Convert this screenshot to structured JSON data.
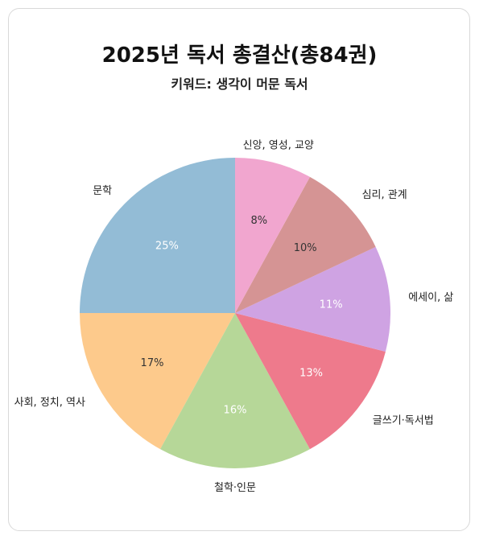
{
  "chart_data": {
    "type": "pie",
    "title": "2025년 독서 총결산(총84권)",
    "subtitle": "키워드: 생각이 머문 독서",
    "slices": [
      {
        "label": "문학",
        "value": 25,
        "value_label": "25%",
        "color": "#93bcd6",
        "pct_color": "#ffffff"
      },
      {
        "label": "사회, 정치, 역사",
        "value": 17,
        "value_label": "17%",
        "color": "#fdca8c",
        "pct_color": "#333333"
      },
      {
        "label": "철학·인문",
        "value": 16,
        "value_label": "16%",
        "color": "#b6d798",
        "pct_color": "#ffffff"
      },
      {
        "label": "글쓰기·독서법",
        "value": 13,
        "value_label": "13%",
        "color": "#ee7a8c",
        "pct_color": "#ffffff"
      },
      {
        "label": "에세이, 삶",
        "value": 11,
        "value_label": "11%",
        "color": "#cfa3e3",
        "pct_color": "#ffffff"
      },
      {
        "label": "심리, 관계",
        "value": 10,
        "value_label": "10%",
        "color": "#d59494",
        "pct_color": "#333333"
      },
      {
        "label": "신앙, 영성, 교양",
        "value": 8,
        "value_label": "8%",
        "color": "#f1a6cf",
        "pct_color": "#333333"
      }
    ]
  }
}
